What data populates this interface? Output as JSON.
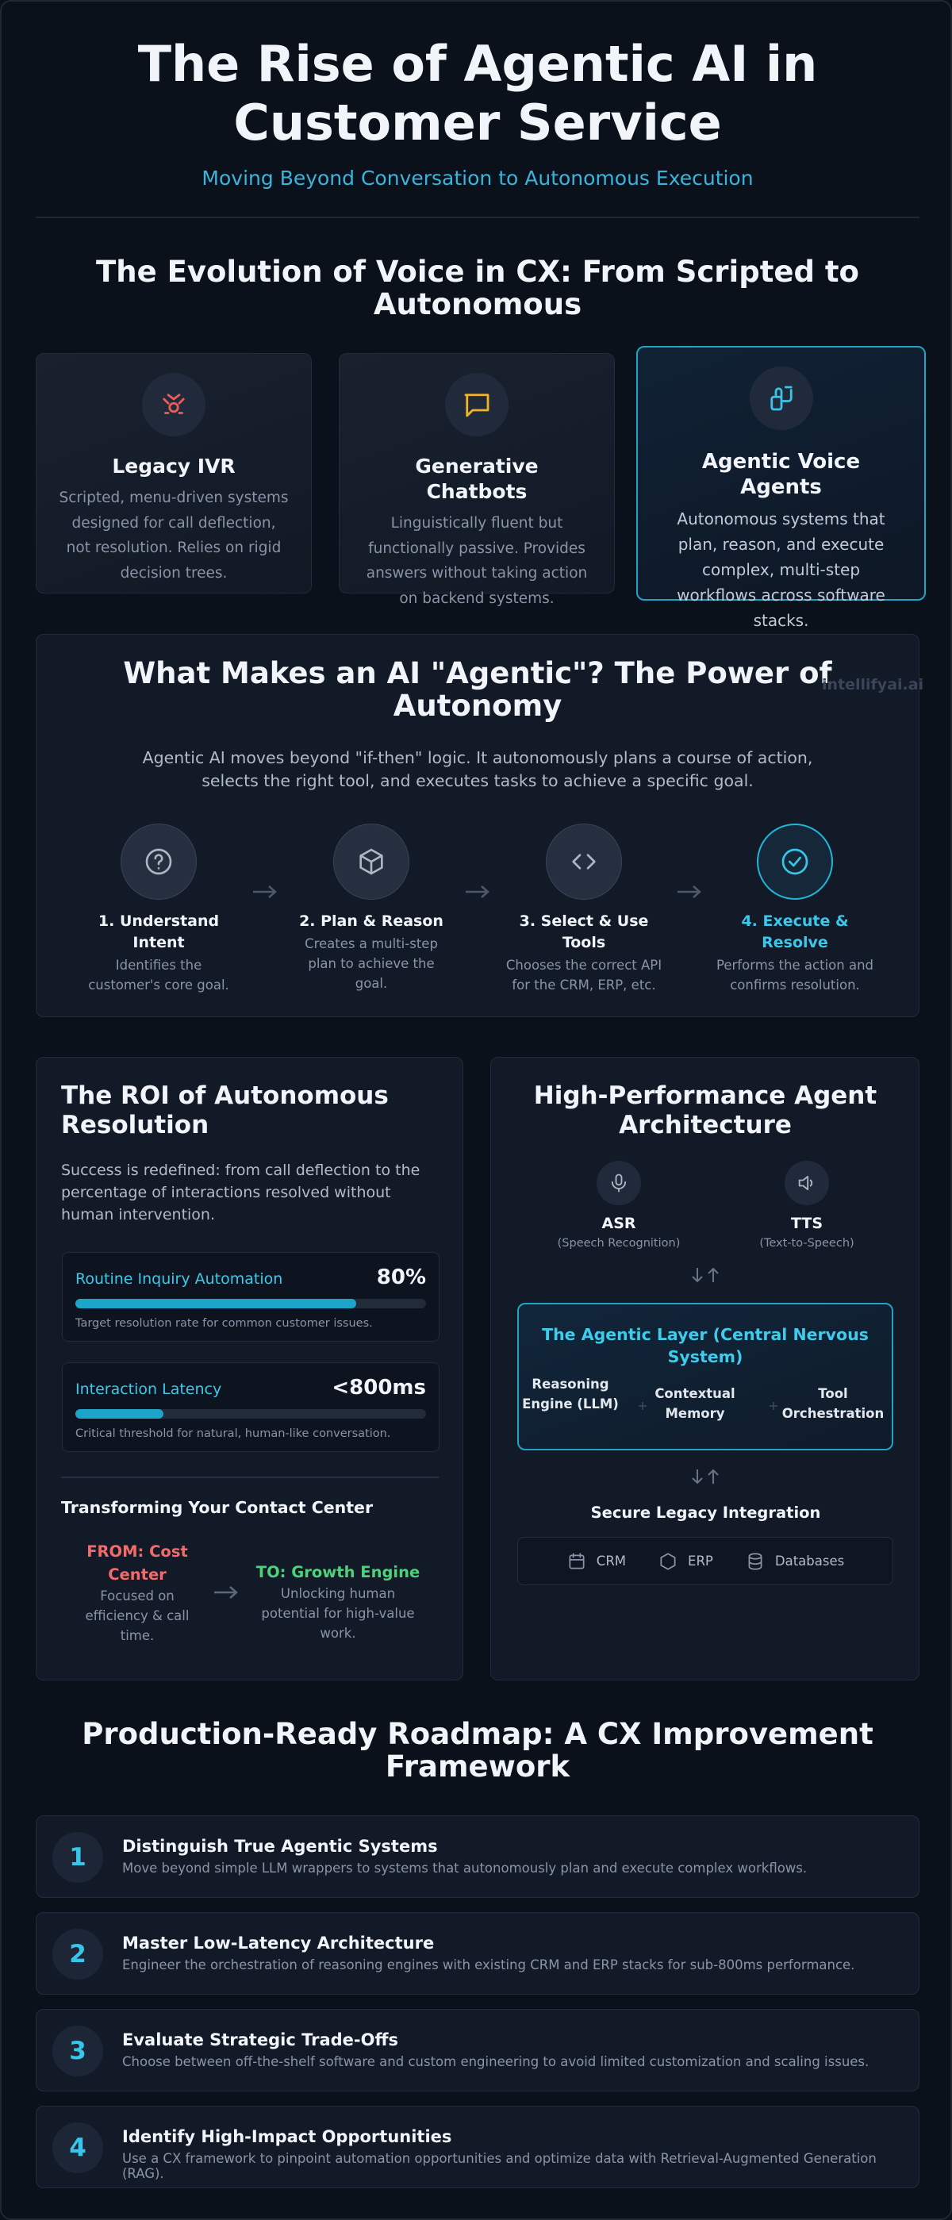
{
  "header": {
    "title": "The Rise of Agentic AI in Customer Service",
    "subtitle": "Moving Beyond Conversation to Autonomous Execution"
  },
  "evolution": {
    "heading": "The Evolution of Voice in CX: From Scripted to Autonomous",
    "cards": [
      {
        "title": "Legacy IVR",
        "description": "Scripted, menu-driven systems designed for call deflection, not resolution. Relies on rigid decision trees."
      },
      {
        "title": "Generative Chatbots",
        "description": "Linguistically fluent but functionally passive. Provides answers without taking action on backend systems."
      },
      {
        "title": "Agentic Voice Agents",
        "description": "Autonomous systems that plan, reason, and execute complex, multi-step workflows across software stacks."
      }
    ]
  },
  "agentic": {
    "heading": "What Makes an AI \"Agentic\"? The Power of Autonomy",
    "watermark": "intellifyai.ai",
    "intro": "Agentic AI moves beyond \"if-then\" logic. It autonomously plans a course of action, selects the right tool, and executes tasks to achieve a specific goal.",
    "steps": [
      {
        "title": "1. Understand Intent",
        "description": "Identifies the customer's core goal."
      },
      {
        "title": "2. Plan & Reason",
        "description": "Creates a multi-step plan to achieve the goal."
      },
      {
        "title": "3. Select & Use Tools",
        "description": "Chooses the correct API for the CRM, ERP, etc."
      },
      {
        "title": "4. Execute & Resolve",
        "description": "Performs the action and confirms resolution."
      }
    ]
  },
  "roi": {
    "heading": "The ROI of Autonomous Resolution",
    "intro": "Success is redefined: from call deflection to the percentage of interactions resolved without human intervention.",
    "metrics": [
      {
        "label": "Routine Inquiry Automation",
        "value": "80%",
        "progress": 80,
        "note": "Target resolution rate for common customer issues."
      },
      {
        "label": "Interaction Latency",
        "value": "<800ms",
        "progress": 25,
        "note": "Critical threshold for natural, human-like conversation."
      }
    ],
    "transform": {
      "heading": "Transforming Your Contact Center",
      "from": {
        "title": "FROM: Cost Center",
        "description": "Focused on efficiency & call time."
      },
      "to": {
        "title": "TO: Growth Engine",
        "description": "Unlocking human potential for high-value work."
      }
    }
  },
  "architecture": {
    "heading": "High-Performance Agent Architecture",
    "io": [
      {
        "title": "ASR",
        "subtitle": "(Speech Recognition)"
      },
      {
        "title": "TTS",
        "subtitle": "(Text-to-Speech)"
      }
    ],
    "layer": {
      "title": "The Agentic Layer (Central Nervous System)",
      "components": [
        "Reasoning Engine (LLM)",
        "Contextual Memory",
        "Tool Orchestration"
      ]
    },
    "integration": {
      "heading": "Secure Legacy Integration",
      "systems": [
        "CRM",
        "ERP",
        "Databases"
      ]
    }
  },
  "roadmap": {
    "heading": "Production-Ready Roadmap: A CX Improvement Framework",
    "items": [
      {
        "number": 1,
        "title": "Distinguish True Agentic Systems",
        "description": "Move beyond simple LLM wrappers to systems that autonomously plan and execute complex workflows."
      },
      {
        "number": 2,
        "title": "Master Low-Latency Architecture",
        "description": "Engineer the orchestration of reasoning engines with existing CRM and ERP stacks for sub-800ms performance."
      },
      {
        "number": 3,
        "title": "Evaluate Strategic Trade-Offs",
        "description": "Choose between off-the-shelf software and custom engineering to avoid limited customization and scaling issues."
      },
      {
        "number": 4,
        "title": "Identify High-Impact Opportunities",
        "description": "Use a CX framework to pinpoint automation opportunities and optimize data with Retrieval-Augmented Generation (RAG)."
      }
    ]
  }
}
